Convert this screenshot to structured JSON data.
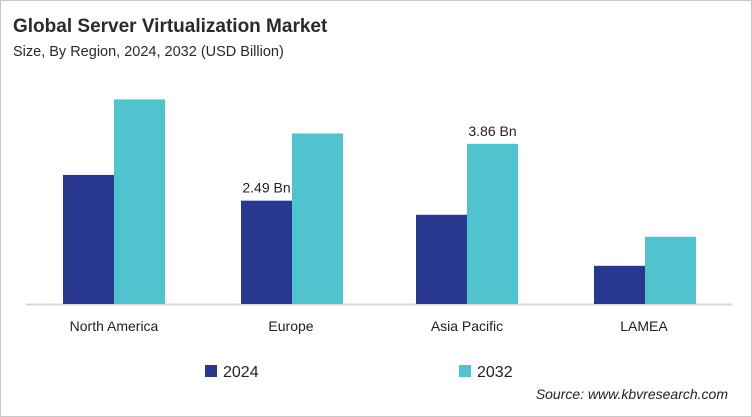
{
  "chart_data": {
    "type": "bar",
    "title": "Global Server Virtualization Market",
    "subtitle": "Size, By Region, 2024, 2032 (USD Billion)",
    "categories": [
      "North America",
      "Europe",
      "Asia Pacific",
      "LAMEA"
    ],
    "series": [
      {
        "name": "2024",
        "color": "#283891",
        "values": [
          3.11,
          2.49,
          2.15,
          0.92
        ]
      },
      {
        "name": "2032",
        "color": "#4fc4cf",
        "values": [
          4.93,
          4.11,
          3.86,
          1.62
        ]
      }
    ],
    "data_labels": [
      {
        "series": 0,
        "category": 1,
        "text": "2.49 Bn"
      },
      {
        "series": 1,
        "category": 2,
        "text": "3.86 Bn"
      }
    ],
    "ylim": [
      0,
      5
    ],
    "grid": false,
    "legend": "bottom",
    "source": "Source: www.kbvresearch.com"
  }
}
